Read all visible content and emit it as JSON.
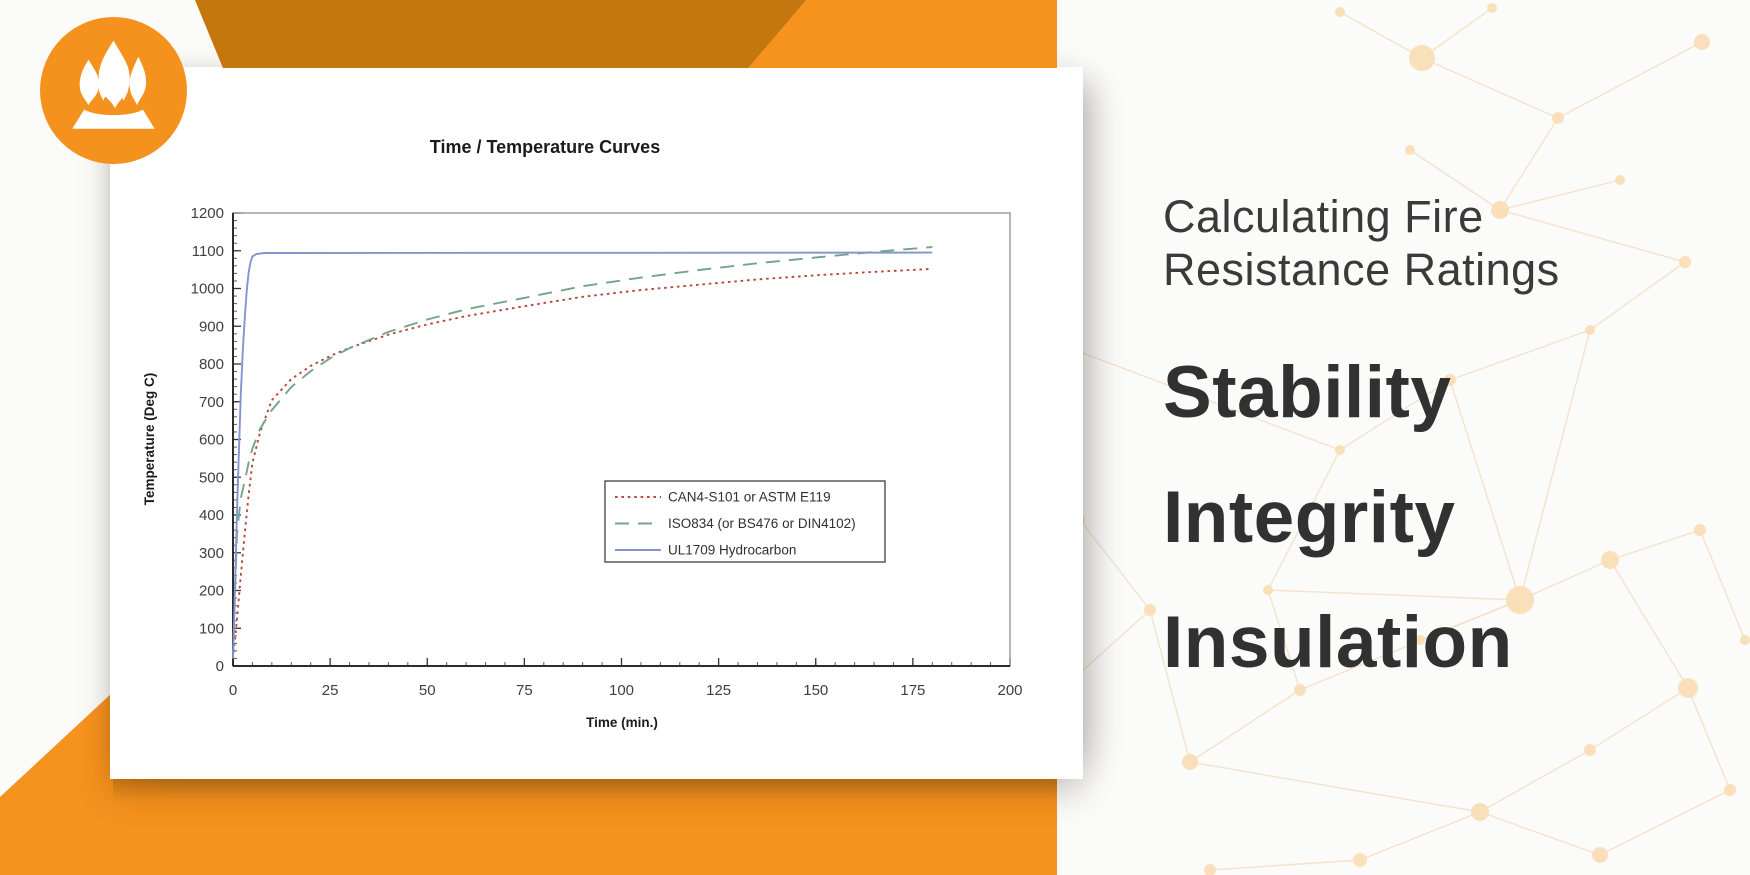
{
  "brand": {
    "logo": "fire-flame",
    "circle_color": "#F5921E"
  },
  "banner_colors": {
    "orange_bright": "#F6921E",
    "orange_dark": "#C4770F"
  },
  "headline": {
    "line1": "Calculating Fire",
    "line2": "Resistance Ratings",
    "words": [
      "Stability",
      "Integrity",
      "Insulation"
    ],
    "text_color": "#333333"
  },
  "chart_data": {
    "type": "line",
    "title": "Time / Temperature Curves",
    "xlabel": "Time (min.)",
    "ylabel": "Temperature (Deg C)",
    "xlim": [
      0,
      200
    ],
    "ylim": [
      0,
      1200
    ],
    "x_ticks": [
      0,
      25,
      50,
      75,
      100,
      125,
      150,
      175,
      200
    ],
    "x_minor_step": 5,
    "y_ticks": [
      0,
      100,
      200,
      300,
      400,
      500,
      600,
      700,
      800,
      900,
      1000,
      1100,
      1200
    ],
    "y_minor_step": 20,
    "grid": false,
    "legend_position": "inside center-right",
    "series": [
      {
        "name": "CAN4-S101 or ASTM E119",
        "color": "#b5493f",
        "style": "dotted",
        "points": [
          [
            0,
            20
          ],
          [
            1,
            120
          ],
          [
            2,
            240
          ],
          [
            3,
            350
          ],
          [
            4,
            450
          ],
          [
            5,
            538
          ],
          [
            7,
            620
          ],
          [
            10,
            704
          ],
          [
            15,
            760
          ],
          [
            20,
            795
          ],
          [
            25,
            821
          ],
          [
            30,
            843
          ],
          [
            40,
            878
          ],
          [
            50,
            905
          ],
          [
            60,
            927
          ],
          [
            75,
            953
          ],
          [
            90,
            978
          ],
          [
            105,
            996
          ],
          [
            120,
            1010
          ],
          [
            135,
            1024
          ],
          [
            150,
            1035
          ],
          [
            165,
            1044
          ],
          [
            180,
            1052
          ]
        ]
      },
      {
        "name": "ISO834 (or BS476 or DIN4102)",
        "color": "#76a48b",
        "style": "dashed",
        "points": [
          [
            0,
            20
          ],
          [
            1,
            349
          ],
          [
            2,
            445
          ],
          [
            3,
            489
          ],
          [
            4,
            537
          ],
          [
            5,
            576
          ],
          [
            7,
            629
          ],
          [
            10,
            678
          ],
          [
            15,
            739
          ],
          [
            20,
            781
          ],
          [
            25,
            815
          ],
          [
            30,
            842
          ],
          [
            40,
            885
          ],
          [
            50,
            918
          ],
          [
            60,
            945
          ],
          [
            75,
            975
          ],
          [
            90,
            1006
          ],
          [
            105,
            1029
          ],
          [
            120,
            1049
          ],
          [
            135,
            1067
          ],
          [
            150,
            1082
          ],
          [
            165,
            1097
          ],
          [
            180,
            1110
          ]
        ]
      },
      {
        "name": "UL1709 Hydrocarbon",
        "color": "#8394ce",
        "style": "solid",
        "points": [
          [
            0,
            20
          ],
          [
            0.5,
            200
          ],
          [
            1,
            400
          ],
          [
            1.5,
            560
          ],
          [
            2,
            720
          ],
          [
            2.5,
            830
          ],
          [
            3,
            920
          ],
          [
            3.5,
            990
          ],
          [
            4,
            1040
          ],
          [
            4.5,
            1070
          ],
          [
            5,
            1085
          ],
          [
            6,
            1091
          ],
          [
            8,
            1094
          ],
          [
            180,
            1095
          ]
        ]
      }
    ]
  }
}
